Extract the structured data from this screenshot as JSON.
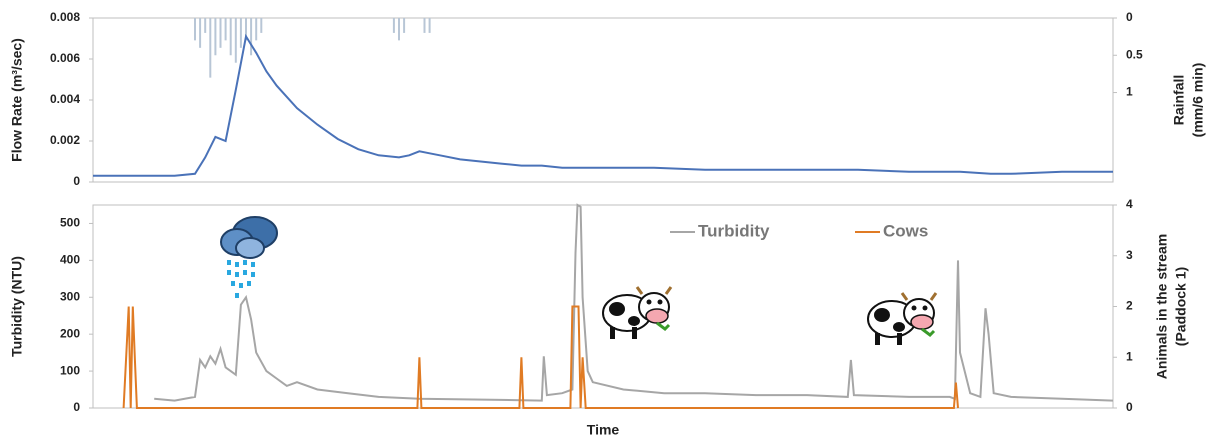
{
  "chart_data": [
    {
      "type": "line",
      "ylabel": "Flow Rate  (m³/sec)",
      "y2label": [
        "Rainfall",
        "(mm/6 min)"
      ],
      "xlim": [
        0,
        100
      ],
      "ylim": [
        0,
        0.008
      ],
      "yticks": [
        0,
        0.002,
        0.004,
        0.006,
        0.008
      ],
      "y2lim": [
        0,
        2.2
      ],
      "y2ticks": [
        0,
        0.5,
        1
      ],
      "y2_inverted": true,
      "series": [
        {
          "type": "line",
          "color": "#4a72b8",
          "x": [
            0,
            2,
            4,
            6,
            8,
            10,
            11,
            12,
            13,
            14,
            15,
            16,
            17,
            18,
            20,
            22,
            24,
            26,
            28,
            30,
            31,
            32,
            33,
            34,
            36,
            38,
            40,
            42,
            44,
            46,
            48,
            50,
            55,
            60,
            65,
            70,
            75,
            80,
            85,
            88,
            90,
            95,
            100
          ],
          "values": [
            0.0003,
            0.0003,
            0.0003,
            0.0003,
            0.0003,
            0.0004,
            0.0012,
            0.0022,
            0.002,
            0.0045,
            0.0071,
            0.0063,
            0.0054,
            0.0047,
            0.0036,
            0.0028,
            0.0021,
            0.0016,
            0.0013,
            0.0012,
            0.0013,
            0.0015,
            0.0014,
            0.0013,
            0.0011,
            0.001,
            0.0009,
            0.0008,
            0.0008,
            0.0007,
            0.0007,
            0.0007,
            0.0007,
            0.0006,
            0.0006,
            0.0006,
            0.0006,
            0.0005,
            0.0005,
            0.0004,
            0.0004,
            0.0005,
            0.0005
          ]
        },
        {
          "type": "bar",
          "axis": "y2",
          "color": "#b8c6d6",
          "x": [
            10,
            10.5,
            11,
            11.5,
            12,
            12.5,
            13,
            13.5,
            14,
            14.5,
            15,
            15.5,
            16,
            16.5,
            29.5,
            30,
            30.5,
            32.5,
            33
          ],
          "values": [
            0.3,
            0.4,
            0.2,
            0.8,
            0.5,
            0.4,
            0.3,
            0.5,
            0.6,
            0.4,
            0.3,
            0.5,
            0.3,
            0.2,
            0.2,
            0.3,
            0.2,
            0.2,
            0.2
          ]
        }
      ]
    },
    {
      "type": "line",
      "ylabel": "Turbidity (NTU)",
      "y2label": [
        "Animals in the stream",
        "(Paddock 1)"
      ],
      "xlabel": "Time",
      "xlim": [
        0,
        100
      ],
      "ylim": [
        0,
        550
      ],
      "yticks": [
        0,
        100,
        200,
        300,
        400,
        500
      ],
      "y2lim": [
        0,
        4
      ],
      "y2ticks": [
        0,
        1,
        2,
        3,
        4
      ],
      "legend": "top-right",
      "series": [
        {
          "name": "Turbidity",
          "type": "line",
          "color": "#a6a6a6",
          "x": [
            6,
            8,
            10,
            10.5,
            11,
            11.5,
            12,
            12.5,
            13,
            13.5,
            14,
            14.5,
            15,
            15.5,
            16,
            17,
            18,
            19,
            20,
            22,
            25,
            28,
            32,
            40,
            44,
            44.2,
            44.5,
            46,
            47,
            47.3,
            47.5,
            47.8,
            48,
            48.5,
            49,
            52,
            56,
            60,
            65,
            70,
            74,
            74.3,
            74.6,
            80,
            84,
            84.5,
            84.8,
            85,
            86,
            87,
            87.5,
            87.8,
            88.3,
            90,
            95,
            100
          ],
          "values": [
            25,
            20,
            30,
            130,
            110,
            140,
            120,
            160,
            110,
            100,
            90,
            280,
            300,
            240,
            150,
            100,
            80,
            60,
            70,
            50,
            40,
            30,
            25,
            22,
            20,
            140,
            35,
            40,
            50,
            420,
            550,
            545,
            300,
            100,
            70,
            50,
            40,
            40,
            35,
            35,
            30,
            130,
            35,
            30,
            30,
            25,
            400,
            150,
            40,
            30,
            270,
            200,
            40,
            30,
            25,
            20
          ]
        },
        {
          "name": "Cows",
          "type": "line",
          "axis": "y2",
          "color": "#e07b24",
          "x": [
            3,
            3.5,
            3.7,
            3.9,
            4.1,
            4.3,
            31.8,
            32,
            32.2,
            41.8,
            42,
            42.2,
            46.8,
            47,
            47.6,
            47.8,
            48,
            48.3,
            84.4,
            84.6,
            84.8
          ],
          "values": [
            0,
            2,
            0,
            2,
            1,
            0,
            0,
            1,
            0,
            0,
            1,
            0,
            0,
            2,
            2,
            0,
            1,
            0,
            0,
            0.5,
            0
          ]
        }
      ]
    }
  ]
}
